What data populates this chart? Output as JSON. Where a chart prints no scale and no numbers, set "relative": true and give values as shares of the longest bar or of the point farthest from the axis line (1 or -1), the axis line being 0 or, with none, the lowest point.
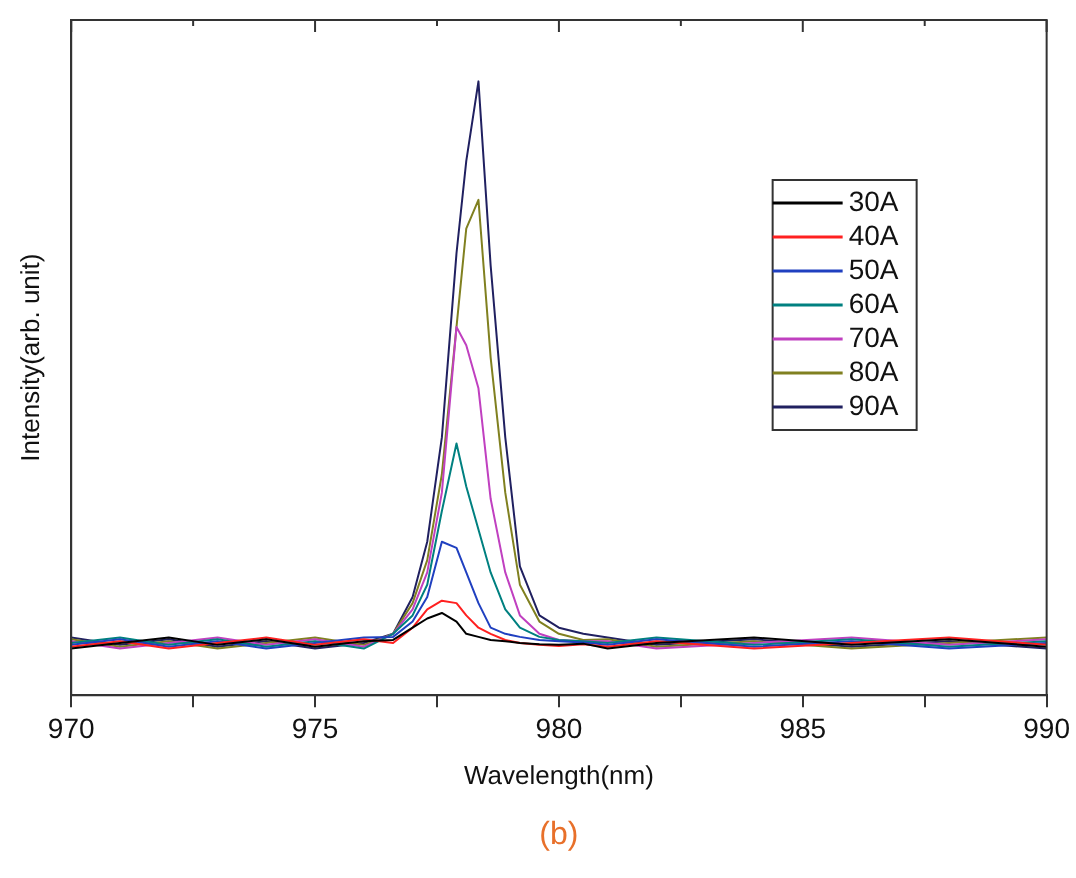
{
  "chart_data": {
    "type": "line",
    "xlabel": "Wavelength(nm)",
    "ylabel": "Intensity(arb. unit)",
    "annotations": [
      "(b)"
    ],
    "relative": true,
    "grid": false,
    "legend": "top right",
    "marker": "none",
    "line_style": "solid",
    "x": [
      970,
      971,
      972,
      973,
      974,
      975,
      976,
      976.6,
      977,
      977.3,
      977.6,
      977.9,
      978.1,
      978.35,
      978.6,
      978.9,
      979.2,
      979.6,
      980,
      980.5,
      981,
      982,
      984,
      986,
      988,
      990
    ],
    "xlim": [
      970,
      990
    ],
    "xticks": [
      970,
      {
        "value": 972.5,
        "label": null
      },
      975,
      {
        "value": 977.5,
        "label": null
      },
      980,
      {
        "value": 982.5,
        "label": null
      },
      985,
      {
        "value": 987.5,
        "label": null
      },
      990
    ],
    "series": [
      {
        "name": "30A",
        "color": "#000000",
        "values": [
          0.076,
          0.085,
          0.094,
          0.082,
          0.091,
          0.079,
          0.088,
          0.09,
          0.11,
          0.125,
          0.134,
          0.12,
          0.1,
          0.095,
          0.09,
          0.088,
          0.085,
          0.083,
          0.082,
          0.084,
          0.076,
          0.085,
          0.094,
          0.082,
          0.091,
          0.079
        ]
      },
      {
        "name": "40A",
        "color": "#ff2020",
        "values": [
          0.079,
          0.088,
          0.076,
          0.085,
          0.094,
          0.082,
          0.091,
          0.085,
          0.11,
          0.14,
          0.154,
          0.15,
          0.13,
          0.11,
          0.1,
          0.09,
          0.085,
          0.082,
          0.08,
          0.083,
          0.079,
          0.088,
          0.076,
          0.085,
          0.094,
          0.082
        ]
      },
      {
        "name": "50A",
        "color": "#2040c0",
        "values": [
          0.082,
          0.091,
          0.079,
          0.088,
          0.076,
          0.085,
          0.094,
          0.095,
          0.12,
          0.16,
          0.25,
          0.24,
          0.2,
          0.15,
          0.11,
          0.1,
          0.095,
          0.09,
          0.088,
          0.086,
          0.082,
          0.091,
          0.079,
          0.088,
          0.076,
          0.085
        ]
      },
      {
        "name": "60A",
        "color": "#008080",
        "values": [
          0.085,
          0.094,
          0.082,
          0.091,
          0.079,
          0.088,
          0.076,
          0.1,
          0.13,
          0.18,
          0.3,
          0.41,
          0.34,
          0.27,
          0.2,
          0.14,
          0.11,
          0.095,
          0.09,
          0.088,
          0.085,
          0.094,
          0.082,
          0.091,
          0.079,
          0.088
        ]
      },
      {
        "name": "70A",
        "color": "#c040c0",
        "values": [
          0.088,
          0.076,
          0.085,
          0.094,
          0.082,
          0.091,
          0.079,
          0.1,
          0.14,
          0.2,
          0.33,
          0.6,
          0.57,
          0.5,
          0.32,
          0.2,
          0.13,
          0.1,
          0.09,
          0.088,
          0.088,
          0.076,
          0.085,
          0.094,
          0.082,
          0.091
        ]
      },
      {
        "name": "80A",
        "color": "#808020",
        "values": [
          0.091,
          0.079,
          0.088,
          0.076,
          0.085,
          0.094,
          0.082,
          0.1,
          0.15,
          0.22,
          0.36,
          0.6,
          0.76,
          0.807,
          0.55,
          0.33,
          0.18,
          0.12,
          0.1,
          0.09,
          0.091,
          0.079,
          0.088,
          0.076,
          0.085,
          0.094
        ]
      },
      {
        "name": "90A",
        "color": "#202060",
        "values": [
          0.094,
          0.082,
          0.091,
          0.079,
          0.088,
          0.076,
          0.085,
          0.1,
          0.16,
          0.25,
          0.42,
          0.72,
          0.87,
          1.0,
          0.7,
          0.42,
          0.21,
          0.13,
          0.11,
          0.1,
          0.094,
          0.082,
          0.091,
          0.079,
          0.088,
          0.076
        ]
      }
    ]
  }
}
